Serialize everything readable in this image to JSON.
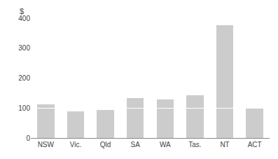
{
  "chart_data": {
    "type": "bar",
    "stacked": true,
    "categories": [
      "NSW",
      "Vic.",
      "Qld",
      "SA",
      "WA",
      "Tas.",
      "NT",
      "ACT"
    ],
    "series": [
      {
        "color": "#cccccc",
        "values": [
          100,
          90,
          95,
          100,
          100,
          100,
          100,
          100
        ]
      },
      {
        "color": "#cccccc",
        "values": [
          13,
          0,
          0,
          35,
          30,
          45,
          278,
          0
        ]
      }
    ],
    "ylim": [
      0,
      400
    ],
    "yticks": [
      0,
      100,
      200,
      300,
      400
    ],
    "grid": false,
    "annotations": [
      {
        "text": "$"
      }
    ]
  }
}
